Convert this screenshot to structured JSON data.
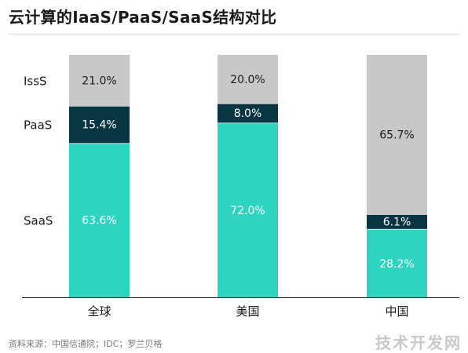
{
  "title": "云计算的IaaS/PaaS/SaaS结构对比",
  "source": "资料来源：中国信通院；IDC；罗兰贝格",
  "watermark": "技术开发网",
  "colors": {
    "iaas": "#c8c8c8",
    "paas": "#073642",
    "saas": "#2dd4bf"
  },
  "chart_data": {
    "type": "bar",
    "stacked": true,
    "categories": [
      "全球",
      "美国",
      "中国"
    ],
    "series": [
      {
        "name": "SaaS",
        "values": [
          63.6,
          72.0,
          28.2
        ],
        "labels": [
          "63.6%",
          "72.0%",
          "28.2%"
        ]
      },
      {
        "name": "PaaS",
        "values": [
          15.4,
          8.0,
          6.1
        ],
        "labels": [
          "15.4%",
          "8.0%",
          "6.1%"
        ]
      },
      {
        "name": "IssS",
        "values": [
          21.0,
          20.0,
          65.7
        ],
        "labels": [
          "21.0%",
          "20.0%",
          "65.7%"
        ]
      }
    ],
    "ylim": [
      0,
      100
    ],
    "grid": false
  }
}
